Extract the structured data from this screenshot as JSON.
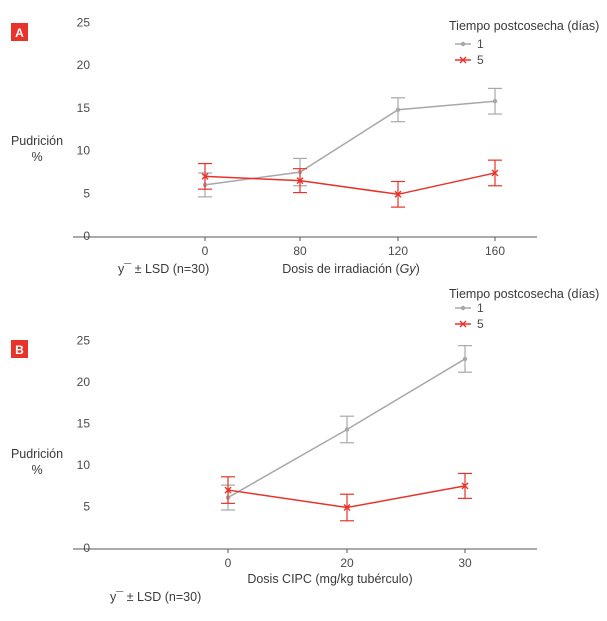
{
  "chart_data": [
    {
      "type": "line",
      "panel_label": "A",
      "categories": [
        "0",
        "80",
        "120",
        "160"
      ],
      "ylim": [
        0,
        25
      ],
      "yticks": [
        "0",
        "5",
        "10",
        "15",
        "20",
        "25"
      ],
      "ylabel": [
        "Pudrición",
        "%"
      ],
      "xlabel_main": "Dosis de irradiación (",
      "xlabel_unit": "Gy",
      "xlabel_close": ")",
      "note": "y¯ ± LSD (n=30)",
      "legend_title": "Tiempo postcosecha (días)",
      "legend_position": "top-right",
      "series": [
        {
          "name": "1",
          "color": "#a8a8a8",
          "marker": "dot",
          "values": [
            6.1,
            7.6,
            14.9,
            15.9
          ],
          "err": [
            1.4,
            1.6,
            1.4,
            1.5
          ]
        },
        {
          "name": "5",
          "color": "#e8332a",
          "marker": "x",
          "values": [
            7.1,
            6.6,
            5.0,
            7.5
          ],
          "err": [
            1.5,
            1.4,
            1.5,
            1.5
          ]
        }
      ]
    },
    {
      "type": "line",
      "panel_label": "B",
      "categories": [
        "0",
        "20",
        "30"
      ],
      "ylim": [
        0,
        25
      ],
      "yticks": [
        "0",
        "5",
        "10",
        "15",
        "20",
        "25"
      ],
      "ylabel": [
        "Pudrición",
        "%"
      ],
      "xlabel_main": "Dosis CIPC (mg/kg tubérculo)",
      "xlabel_unit": "",
      "xlabel_close": "",
      "note": "y¯ ± LSD (n=30)",
      "legend_title": "Tiempo postcosecha (días)",
      "legend_position": "top-right",
      "series": [
        {
          "name": "1",
          "color": "#a8a8a8",
          "marker": "dot",
          "values": [
            6.2,
            14.4,
            22.9
          ],
          "err": [
            1.5,
            1.6,
            1.6
          ]
        },
        {
          "name": "5",
          "color": "#e8332a",
          "marker": "x",
          "values": [
            7.1,
            5.0,
            7.6
          ],
          "err": [
            1.6,
            1.6,
            1.5
          ]
        }
      ]
    }
  ],
  "colors": {
    "badge": "#e8332a",
    "axis": "#555555"
  }
}
